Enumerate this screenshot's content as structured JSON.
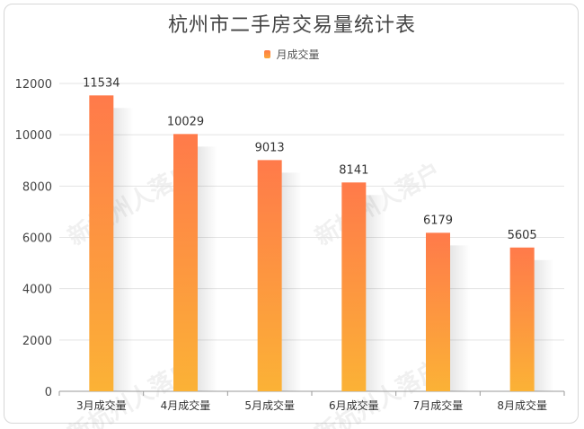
{
  "chart_data": {
    "type": "bar",
    "title": "杭州市二手房交易量统计表",
    "legend": "月成交量",
    "legend_position": "top-center",
    "categories": [
      "3月成交量",
      "4月成交量",
      "5月成交量",
      "6月成交量",
      "7月成交量",
      "8月成交量"
    ],
    "series": [
      {
        "name": "月成交量",
        "values": [
          11534,
          10029,
          9013,
          8141,
          6179,
          5605
        ]
      }
    ],
    "ylim": [
      0,
      12000
    ],
    "yticks": [
      0,
      2000,
      4000,
      6000,
      8000,
      10000,
      12000
    ],
    "grid": true,
    "bar_gradient": {
      "top": "#ff7a4a",
      "bottom": "#fbb236"
    }
  },
  "watermark": {
    "text": "新杭州人落户"
  }
}
